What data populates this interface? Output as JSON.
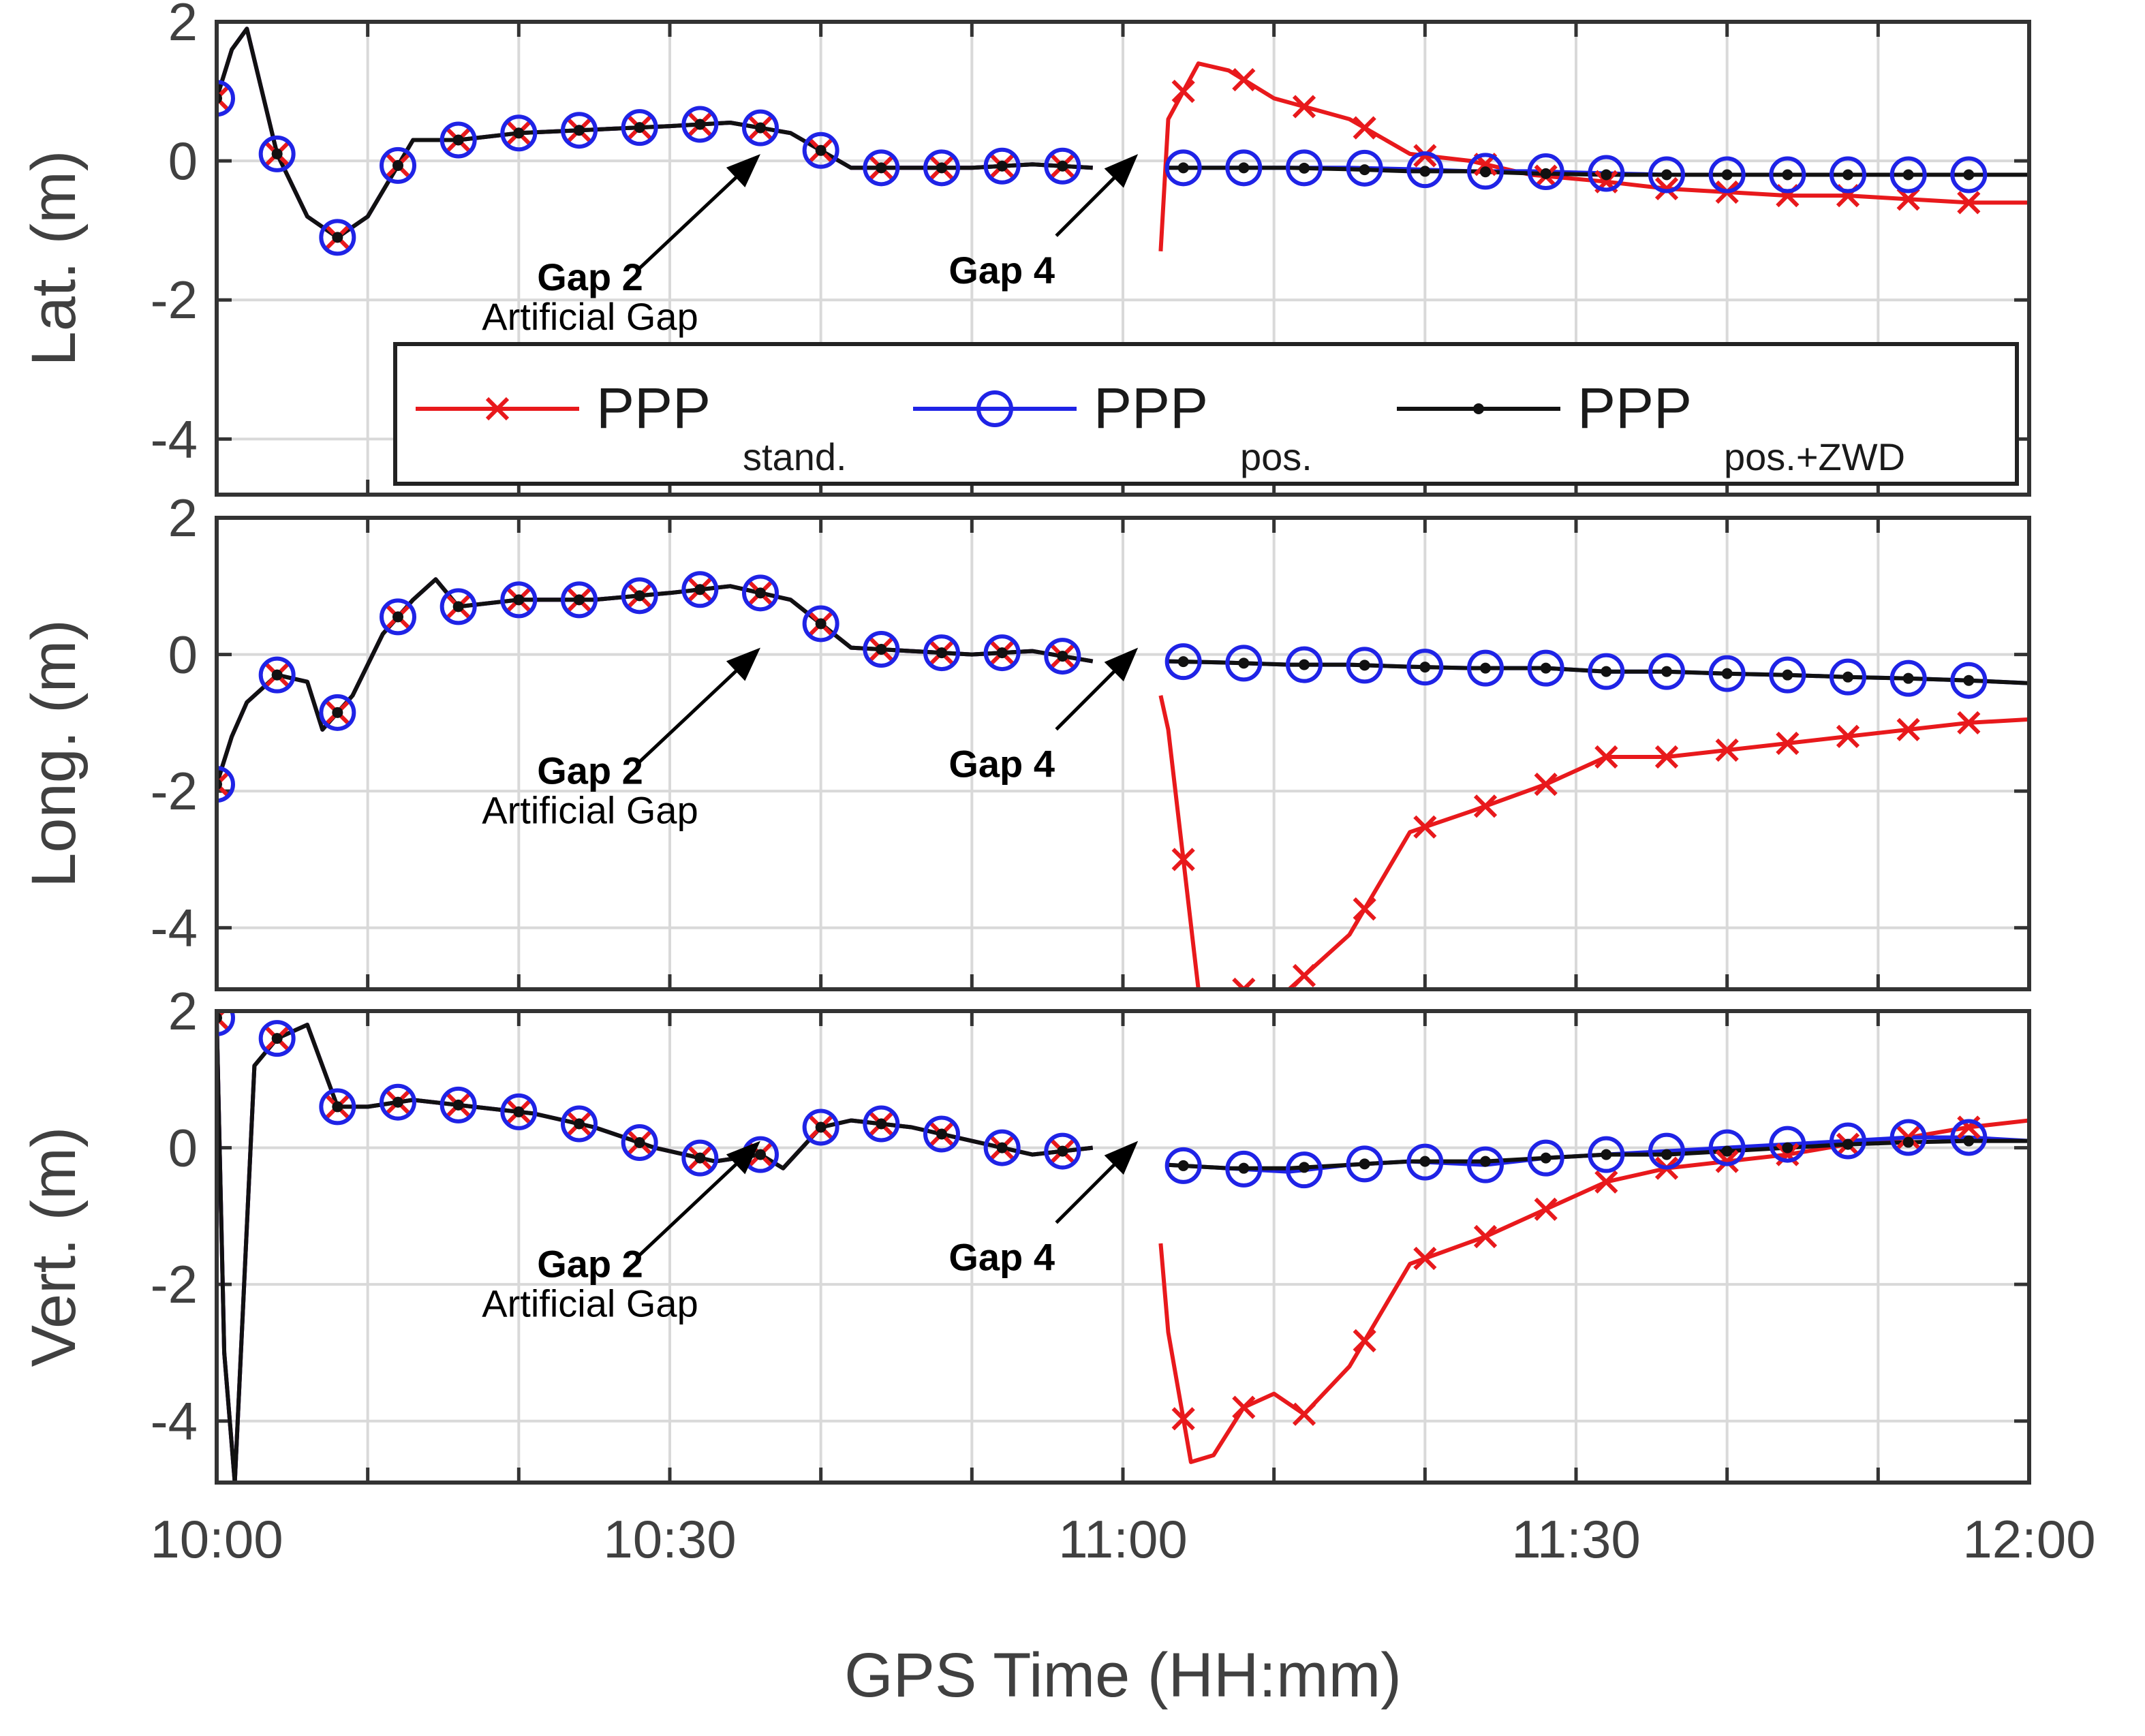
{
  "chart_data": [
    {
      "type": "line",
      "ylabel": "Lat. (m)",
      "ylim": [
        -4.8,
        2.0
      ],
      "yticks": [
        2,
        0,
        -2,
        -4
      ],
      "xlim": [
        0,
        120
      ],
      "annotations": [
        {
          "bold": "Gap 2",
          "text": "Artificial Gap",
          "arrow_to_min": 36
        },
        {
          "bold": "Gap 4",
          "text": "",
          "arrow_to_min": 61
        }
      ],
      "series": [
        {
          "name": "PPP stand.",
          "color": "#e8191c",
          "marker": "x",
          "x": [
            0,
            1,
            2,
            4,
            6,
            8,
            10,
            13,
            16,
            20,
            25,
            30,
            34,
            38,
            42,
            46,
            50,
            54,
            58,
            61,
            62.5,
            63,
            65,
            67,
            70,
            75,
            79,
            83,
            87,
            92,
            96,
            100,
            104,
            108,
            112,
            116,
            120
          ],
          "y": [
            0.9,
            1.6,
            1.9,
            0.1,
            -0.8,
            -1.1,
            -0.8,
            0.3,
            0.3,
            0.4,
            0.45,
            0.5,
            0.55,
            0.4,
            -0.1,
            -0.1,
            -0.1,
            -0.05,
            -0.1,
            null,
            -1.3,
            0.6,
            1.4,
            1.3,
            0.9,
            0.6,
            0.1,
            0.0,
            -0.2,
            -0.3,
            -0.4,
            -0.45,
            -0.5,
            -0.5,
            -0.55,
            -0.6,
            -0.6
          ]
        },
        {
          "name": "PPP pos.",
          "color": "#1f23e6",
          "marker": "o",
          "x": [
            0,
            1,
            2,
            4,
            6,
            8,
            10,
            13,
            16,
            20,
            25,
            30,
            34,
            38,
            42,
            46,
            50,
            54,
            58,
            61,
            63,
            67,
            71,
            75,
            79,
            83,
            87,
            92,
            96,
            100,
            104,
            108,
            112,
            116,
            120
          ],
          "y": [
            0.9,
            1.6,
            1.9,
            0.1,
            -0.8,
            -1.1,
            -0.8,
            0.3,
            0.3,
            0.4,
            0.45,
            0.5,
            0.55,
            0.4,
            -0.1,
            -0.1,
            -0.1,
            -0.05,
            -0.1,
            null,
            -0.1,
            -0.1,
            -0.1,
            -0.1,
            -0.12,
            -0.15,
            -0.15,
            -0.18,
            -0.2,
            -0.2,
            -0.2,
            -0.2,
            -0.2,
            -0.2,
            -0.2
          ]
        },
        {
          "name": "PPP pos.+ZWD",
          "color": "#111111",
          "marker": "dot",
          "x": [
            0,
            1,
            2,
            4,
            6,
            8,
            10,
            13,
            16,
            20,
            25,
            30,
            34,
            38,
            42,
            46,
            50,
            54,
            58,
            61,
            63,
            67,
            71,
            75,
            79,
            83,
            87,
            92,
            96,
            100,
            104,
            108,
            112,
            116,
            120
          ],
          "y": [
            0.9,
            1.6,
            1.9,
            0.1,
            -0.8,
            -1.1,
            -0.8,
            0.3,
            0.3,
            0.4,
            0.45,
            0.5,
            0.55,
            0.4,
            -0.1,
            -0.1,
            -0.1,
            -0.05,
            -0.1,
            null,
            -0.1,
            -0.1,
            -0.1,
            -0.12,
            -0.15,
            -0.15,
            -0.18,
            -0.2,
            -0.2,
            -0.2,
            -0.2,
            -0.2,
            -0.2,
            -0.2,
            -0.2
          ]
        }
      ]
    },
    {
      "type": "line",
      "ylabel": "Long. (m)",
      "ylim": [
        -4.9,
        2.0
      ],
      "yticks": [
        2,
        0,
        -2,
        -4
      ],
      "xlim": [
        0,
        120
      ],
      "annotations": [
        {
          "bold": "Gap 2",
          "text": "Artificial Gap",
          "arrow_to_min": 36
        },
        {
          "bold": "Gap 4",
          "text": "",
          "arrow_to_min": 61
        }
      ],
      "series": [
        {
          "name": "PPP stand.",
          "color": "#e8191c",
          "marker": "x",
          "x": [
            0,
            1,
            2,
            4,
            6,
            7,
            9,
            11,
            13,
            14.5,
            16,
            20,
            25,
            30,
            34,
            38,
            42,
            46,
            50,
            54,
            58,
            61,
            62.5,
            63,
            64,
            65,
            68,
            71,
            75,
            79,
            83,
            88,
            92,
            96,
            100,
            104,
            108,
            112,
            116,
            120
          ],
          "y": [
            -1.9,
            -1.2,
            -0.7,
            -0.3,
            -0.4,
            -1.1,
            -0.6,
            0.3,
            0.8,
            1.1,
            0.7,
            0.8,
            0.8,
            0.9,
            1.0,
            0.8,
            0.1,
            0.05,
            0.0,
            0.05,
            -0.1,
            null,
            -0.6,
            -1.1,
            -3.0,
            -4.9,
            -4.9,
            -4.9,
            -4.1,
            -2.6,
            -2.3,
            -1.9,
            -1.5,
            -1.5,
            -1.4,
            -1.3,
            -1.2,
            -1.1,
            -1.0,
            -0.95
          ]
        },
        {
          "name": "PPP pos.",
          "color": "#1f23e6",
          "marker": "o",
          "x": [
            0,
            1,
            2,
            4,
            6,
            7,
            9,
            11,
            13,
            14.5,
            16,
            20,
            25,
            30,
            34,
            38,
            42,
            46,
            50,
            54,
            58,
            61,
            63,
            67,
            71,
            75,
            79,
            83,
            88,
            92,
            96,
            100,
            104,
            108,
            112,
            116,
            120
          ],
          "y": [
            -1.9,
            -1.2,
            -0.7,
            -0.3,
            -0.4,
            -1.1,
            -0.6,
            0.3,
            0.8,
            1.1,
            0.7,
            0.8,
            0.8,
            0.9,
            1.0,
            0.8,
            0.1,
            0.05,
            0.0,
            0.05,
            -0.1,
            null,
            -0.1,
            -0.12,
            -0.15,
            -0.15,
            -0.18,
            -0.2,
            -0.2,
            -0.25,
            -0.25,
            -0.28,
            -0.3,
            -0.33,
            -0.35,
            -0.38,
            -0.42
          ]
        },
        {
          "name": "PPP pos.+ZWD",
          "color": "#111111",
          "marker": "dot",
          "x": [
            0,
            1,
            2,
            4,
            6,
            7,
            9,
            11,
            13,
            14.5,
            16,
            20,
            25,
            30,
            34,
            38,
            42,
            46,
            50,
            54,
            58,
            61,
            63,
            67,
            71,
            75,
            79,
            83,
            88,
            92,
            96,
            100,
            104,
            108,
            112,
            116,
            120
          ],
          "y": [
            -1.9,
            -1.2,
            -0.7,
            -0.3,
            -0.4,
            -1.1,
            -0.6,
            0.3,
            0.8,
            1.1,
            0.7,
            0.8,
            0.8,
            0.9,
            1.0,
            0.8,
            0.1,
            0.05,
            0.0,
            0.05,
            -0.1,
            null,
            -0.1,
            -0.12,
            -0.15,
            -0.15,
            -0.18,
            -0.2,
            -0.2,
            -0.25,
            -0.25,
            -0.28,
            -0.3,
            -0.33,
            -0.35,
            -0.38,
            -0.42
          ]
        }
      ]
    },
    {
      "type": "line",
      "ylabel": "Vert. (m)",
      "ylim": [
        -4.9,
        2.0
      ],
      "yticks": [
        2,
        0,
        -2,
        -4
      ],
      "xlim": [
        0,
        120
      ],
      "xticks": [
        "10:00",
        "10:30",
        "11:00",
        "11:30",
        "12:00"
      ],
      "xlabel": "GPS Time (HH:mm)",
      "annotations": [
        {
          "bold": "Gap 2",
          "text": "Artificial Gap",
          "arrow_to_min": 36
        },
        {
          "bold": "Gap 4",
          "text": "",
          "arrow_to_min": 61
        }
      ],
      "series": [
        {
          "name": "PPP stand.",
          "color": "#e8191c",
          "marker": "x",
          "x": [
            0,
            0.5,
            1.2,
            2.5,
            4,
            6,
            8,
            10,
            13,
            17,
            21,
            25,
            29,
            33,
            36,
            37.5,
            40,
            42,
            46,
            50,
            54,
            58,
            61,
            62.5,
            63,
            64.5,
            66,
            68,
            70,
            72,
            75,
            79,
            84,
            88,
            92,
            96,
            100,
            104,
            108,
            112,
            116,
            120
          ],
          "y": [
            1.9,
            -3.0,
            -4.9,
            1.2,
            1.6,
            1.8,
            0.6,
            0.6,
            0.7,
            0.6,
            0.5,
            0.3,
            0.0,
            -0.2,
            -0.1,
            -0.3,
            0.3,
            0.4,
            0.3,
            0.1,
            -0.1,
            0.0,
            null,
            -1.4,
            -2.7,
            -4.6,
            -4.5,
            -3.8,
            -3.6,
            -3.9,
            -3.2,
            -1.7,
            -1.3,
            -0.9,
            -0.5,
            -0.3,
            -0.2,
            -0.1,
            0.05,
            0.15,
            0.3,
            0.4
          ]
        },
        {
          "name": "PPP pos.",
          "color": "#1f23e6",
          "marker": "o",
          "x": [
            0,
            0.5,
            1.2,
            2.5,
            4,
            6,
            8,
            10,
            13,
            17,
            21,
            25,
            29,
            33,
            36,
            37.5,
            40,
            42,
            46,
            50,
            54,
            58,
            61,
            63,
            67,
            71,
            75,
            79,
            84,
            88,
            92,
            96,
            100,
            104,
            108,
            112,
            116,
            120
          ],
          "y": [
            1.9,
            -3.0,
            -4.9,
            1.2,
            1.6,
            1.8,
            0.6,
            0.6,
            0.7,
            0.6,
            0.5,
            0.3,
            0.0,
            -0.2,
            -0.1,
            -0.3,
            0.3,
            0.4,
            0.3,
            0.1,
            -0.1,
            0.0,
            null,
            -0.25,
            -0.3,
            -0.35,
            -0.25,
            -0.2,
            -0.25,
            -0.15,
            -0.1,
            -0.05,
            0.0,
            0.05,
            0.1,
            0.15,
            0.15,
            0.1
          ]
        },
        {
          "name": "PPP pos.+ZWD",
          "color": "#111111",
          "marker": "dot",
          "x": [
            0,
            0.5,
            1.2,
            2.5,
            4,
            6,
            8,
            10,
            13,
            17,
            21,
            25,
            29,
            33,
            36,
            37.5,
            40,
            42,
            46,
            50,
            54,
            58,
            61,
            63,
            67,
            71,
            75,
            79,
            84,
            88,
            92,
            96,
            100,
            104,
            108,
            112,
            116,
            120
          ],
          "y": [
            1.9,
            -3.0,
            -4.9,
            1.2,
            1.6,
            1.8,
            0.6,
            0.6,
            0.7,
            0.6,
            0.5,
            0.3,
            0.0,
            -0.2,
            -0.1,
            -0.3,
            0.3,
            0.4,
            0.3,
            0.1,
            -0.1,
            0.0,
            null,
            -0.25,
            -0.3,
            -0.3,
            -0.25,
            -0.2,
            -0.2,
            -0.15,
            -0.1,
            -0.1,
            -0.05,
            0.0,
            0.05,
            0.08,
            0.1,
            0.1
          ]
        }
      ]
    }
  ],
  "legend": {
    "items": [
      {
        "main": "PPP",
        "sub": "stand.",
        "color": "#e8191c",
        "marker": "x"
      },
      {
        "main": "PPP",
        "sub": "pos.",
        "color": "#1f23e6",
        "marker": "o"
      },
      {
        "main": "PPP",
        "sub": "pos.+ZWD",
        "color": "#111111",
        "marker": "dot"
      }
    ]
  },
  "colors": {
    "axis": "#333333",
    "grid": "#d9d9d9",
    "text": "#404040"
  }
}
